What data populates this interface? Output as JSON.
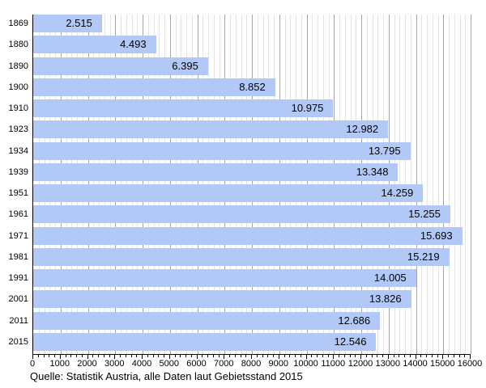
{
  "chart_data": {
    "type": "bar",
    "orientation": "horizontal",
    "title": "",
    "xlabel": "",
    "ylabel": "",
    "categories": [
      "1869",
      "1880",
      "1890",
      "1900",
      "1910",
      "1923",
      "1934",
      "1939",
      "1951",
      "1961",
      "1971",
      "1981",
      "1991",
      "2001",
      "2011",
      "2015"
    ],
    "values": [
      2515,
      4493,
      6395,
      8852,
      10975,
      12982,
      13795,
      13348,
      14259,
      15255,
      15693,
      15219,
      14005,
      13826,
      12686,
      12546
    ],
    "value_labels": [
      "2.515",
      "4.493",
      "6.395",
      "8.852",
      "10.975",
      "12.982",
      "13.795",
      "13.348",
      "14.259",
      "15.255",
      "15.693",
      "15.219",
      "14.005",
      "13.826",
      "12.686",
      "12.546"
    ],
    "xlim": [
      0,
      16000
    ],
    "x_major_step": 1000,
    "x_minor_step": 200,
    "x_tick_labels": [
      "0",
      "1000",
      "2000",
      "3000",
      "4000",
      "5000",
      "6000",
      "7000",
      "8000",
      "9000",
      "10000",
      "11000",
      "12000",
      "13000",
      "14000",
      "15000",
      "16000"
    ],
    "grid": "vertical-minor-and-major",
    "legend_position": "none"
  },
  "caption": "Quelle: Statistik Austria, alle Daten laut Gebietsstand 2015",
  "colors": {
    "bar": "#b2c9f7",
    "major_grid": "#a6a6a6",
    "minor_grid": "#e4e4e4",
    "axis": "#000000",
    "text": "#000000",
    "background": "#ffffff"
  }
}
